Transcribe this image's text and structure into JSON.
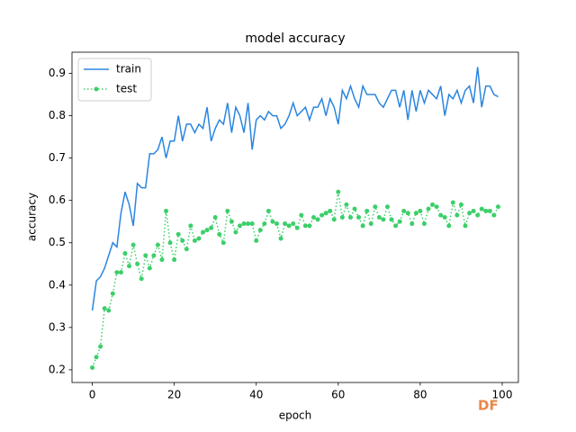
{
  "chart_data": {
    "type": "line",
    "title": "model accuracy",
    "xlabel": "epoch",
    "ylabel": "accuracy",
    "x": [
      0,
      1,
      2,
      3,
      4,
      5,
      6,
      7,
      8,
      9,
      10,
      11,
      12,
      13,
      14,
      15,
      16,
      17,
      18,
      19,
      20,
      21,
      22,
      23,
      24,
      25,
      26,
      27,
      28,
      29,
      30,
      31,
      32,
      33,
      34,
      35,
      36,
      37,
      38,
      39,
      40,
      41,
      42,
      43,
      44,
      45,
      46,
      47,
      48,
      49,
      50,
      51,
      52,
      53,
      54,
      55,
      56,
      57,
      58,
      59,
      60,
      61,
      62,
      63,
      64,
      65,
      66,
      67,
      68,
      69,
      70,
      71,
      72,
      73,
      74,
      75,
      76,
      77,
      78,
      79,
      80,
      81,
      82,
      83,
      84,
      85,
      86,
      87,
      88,
      89,
      90,
      91,
      92,
      93,
      94,
      95,
      96,
      97,
      98,
      99
    ],
    "series": [
      {
        "name": "train",
        "color": "#2a85e0",
        "style": "solid",
        "values": [
          0.34,
          0.41,
          0.42,
          0.44,
          0.47,
          0.5,
          0.49,
          0.57,
          0.62,
          0.59,
          0.54,
          0.64,
          0.63,
          0.63,
          0.71,
          0.71,
          0.72,
          0.75,
          0.7,
          0.74,
          0.74,
          0.8,
          0.74,
          0.78,
          0.78,
          0.76,
          0.78,
          0.77,
          0.82,
          0.74,
          0.77,
          0.79,
          0.78,
          0.83,
          0.76,
          0.82,
          0.8,
          0.76,
          0.83,
          0.72,
          0.79,
          0.8,
          0.79,
          0.81,
          0.8,
          0.8,
          0.77,
          0.78,
          0.8,
          0.83,
          0.8,
          0.81,
          0.82,
          0.79,
          0.82,
          0.82,
          0.84,
          0.8,
          0.84,
          0.82,
          0.78,
          0.86,
          0.84,
          0.87,
          0.84,
          0.82,
          0.87,
          0.85,
          0.85,
          0.85,
          0.83,
          0.82,
          0.84,
          0.86,
          0.86,
          0.82,
          0.86,
          0.79,
          0.86,
          0.81,
          0.86,
          0.83,
          0.86,
          0.85,
          0.84,
          0.87,
          0.8,
          0.85,
          0.84,
          0.86,
          0.83,
          0.86,
          0.87,
          0.83,
          0.915,
          0.82,
          0.87,
          0.87,
          0.85,
          0.845
        ]
      },
      {
        "name": "test",
        "color": "#3ccf6a",
        "style": "dotted",
        "marker": true,
        "values": [
          0.205,
          0.23,
          0.255,
          0.345,
          0.34,
          0.38,
          0.43,
          0.43,
          0.475,
          0.445,
          0.495,
          0.45,
          0.415,
          0.47,
          0.44,
          0.47,
          0.495,
          0.46,
          0.575,
          0.5,
          0.46,
          0.52,
          0.505,
          0.485,
          0.54,
          0.505,
          0.51,
          0.525,
          0.53,
          0.535,
          0.56,
          0.52,
          0.5,
          0.575,
          0.55,
          0.525,
          0.54,
          0.545,
          0.545,
          0.545,
          0.505,
          0.53,
          0.545,
          0.575,
          0.55,
          0.545,
          0.51,
          0.545,
          0.54,
          0.545,
          0.535,
          0.565,
          0.54,
          0.54,
          0.56,
          0.555,
          0.565,
          0.57,
          0.575,
          0.555,
          0.62,
          0.56,
          0.59,
          0.56,
          0.58,
          0.56,
          0.54,
          0.575,
          0.545,
          0.585,
          0.56,
          0.555,
          0.585,
          0.555,
          0.54,
          0.55,
          0.575,
          0.57,
          0.545,
          0.57,
          0.575,
          0.545,
          0.58,
          0.59,
          0.585,
          0.565,
          0.56,
          0.54,
          0.595,
          0.565,
          0.59,
          0.54,
          0.57,
          0.575,
          0.565,
          0.58,
          0.575,
          0.575,
          0.565,
          0.585
        ]
      }
    ],
    "xlim": [
      -4.95,
      103.95
    ],
    "ylim": [
      0.17,
      0.95
    ],
    "xticks": [
      0,
      20,
      40,
      60,
      80,
      100
    ],
    "yticks": [
      0.2,
      0.3,
      0.4,
      0.5,
      0.6,
      0.7,
      0.8,
      0.9
    ],
    "legend": "upper left"
  },
  "watermark": "DF"
}
